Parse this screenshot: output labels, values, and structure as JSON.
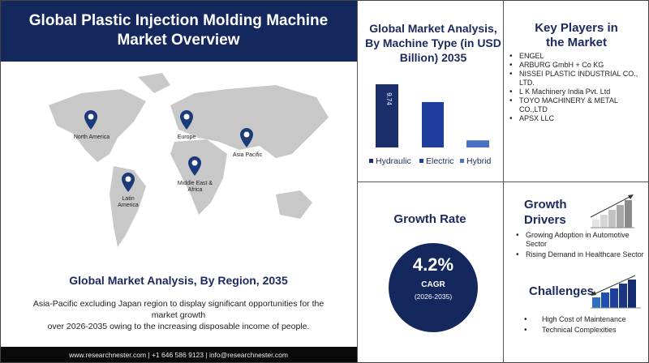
{
  "banner": {
    "title_line1": "Global Plastic Injection Molding Machine",
    "title_line2": "Market Overview"
  },
  "map": {
    "regions": [
      "North America",
      "Europe",
      "Asia Pacific",
      "Latin America",
      "Middle East & Africa"
    ],
    "pin_color": "#1b3a7a"
  },
  "region_section": {
    "title": "Global Market Analysis, By Region, 2035",
    "text_line1": "Asia-Pacific excluding Japan region to display significant opportunities for the",
    "text_line2": "market growth",
    "text_line3": "over 2026-2035  owing to the increasing disposable income of people."
  },
  "footer": {
    "text": "www.researchnester.com  | +1 646 586 9123 | info@researchnester.com"
  },
  "chart_data": {
    "type": "bar",
    "title": "Global Market Analysis, By Machine Type (in USD Billion) 2035",
    "categories": [
      "Hydraulic",
      "Electric",
      "Hybrid"
    ],
    "values": [
      9.74,
      7.0,
      1.1
    ],
    "data_labels": [
      "9.74",
      "",
      ""
    ],
    "colors": [
      "#1a2f6b",
      "#1f3f9e",
      "#4a72c4"
    ],
    "legend": "bottom"
  },
  "key_players": {
    "title_line1": "Key Players in",
    "title_line2": "the Market",
    "items": [
      "ENGEL",
      "ARBURG GmbH + Co KG",
      "NISSEI PLASTIC INDUSTRIAL CO., LTD.",
      "L K Machinery India Pvt. Ltd",
      "TOYO MACHINERY & METAL CO.,LTD",
      "APSX LLC"
    ]
  },
  "growth": {
    "title": "Growth Rate",
    "value": "4.2%",
    "label": "CAGR",
    "period": "(2026-2035)",
    "color": "#14285e"
  },
  "drivers": {
    "title_line1": "Growth",
    "title_line2": "Drivers",
    "items": [
      "Growing Adoption in Automotive Sector",
      "Rising Demand in Healthcare Sector"
    ]
  },
  "challenges": {
    "title": "Challenges",
    "items": [
      "High Cost of Maintenance",
      "Technical Complexities"
    ]
  }
}
